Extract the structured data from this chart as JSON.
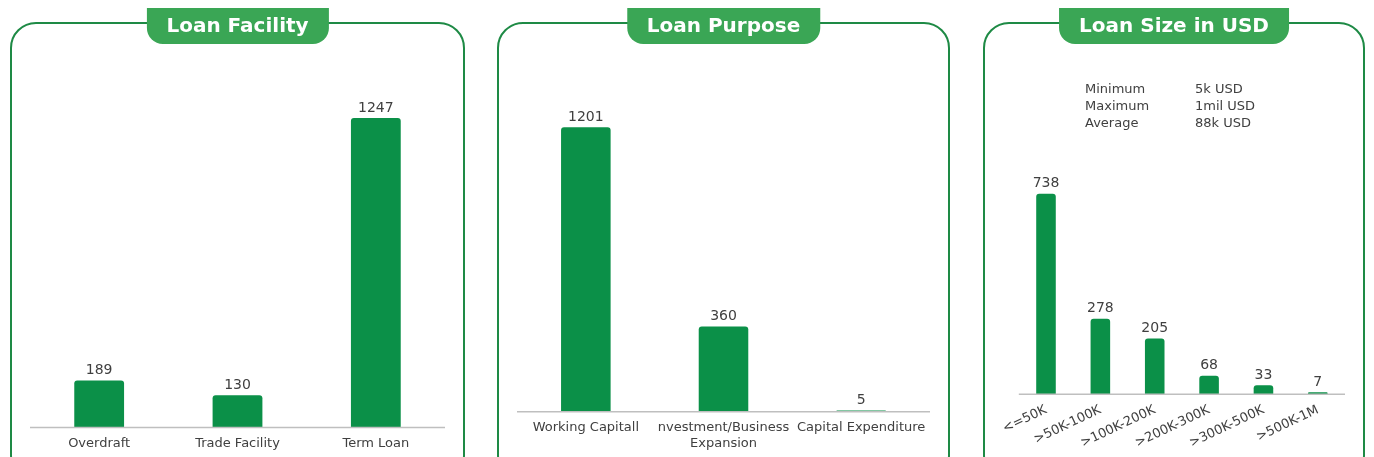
{
  "chart_data": [
    {
      "type": "bar",
      "title": "Loan Facility",
      "categories": [
        "Overdraft",
        "Trade Facility",
        "Term Loan"
      ],
      "values": [
        189,
        130,
        1247
      ],
      "color": "#0b9048",
      "data_labels": true,
      "grid": false,
      "legend": false
    },
    {
      "type": "bar",
      "title": "Loan Purpose",
      "categories": [
        "Working Capitall",
        "nvestment/Business Expansion",
        "Capital Expenditure"
      ],
      "values": [
        1201,
        360,
        5
      ],
      "color": "#0b9048",
      "data_labels": true,
      "grid": false,
      "legend": false
    },
    {
      "type": "bar",
      "title": "Loan Size in USD",
      "categories": [
        "<=50K",
        ">50K-100K",
        ">100K-200K",
        ">200K-300K",
        ">300K-500K",
        ">500K-1M"
      ],
      "values": [
        738,
        278,
        205,
        68,
        33,
        7
      ],
      "color": "#0b9048",
      "data_labels": true,
      "grid": false,
      "legend": false,
      "annotations": [
        "Minimum",
        "5k USD",
        "Maximum",
        "1mil USD",
        "Average",
        "88k USD"
      ]
    }
  ]
}
